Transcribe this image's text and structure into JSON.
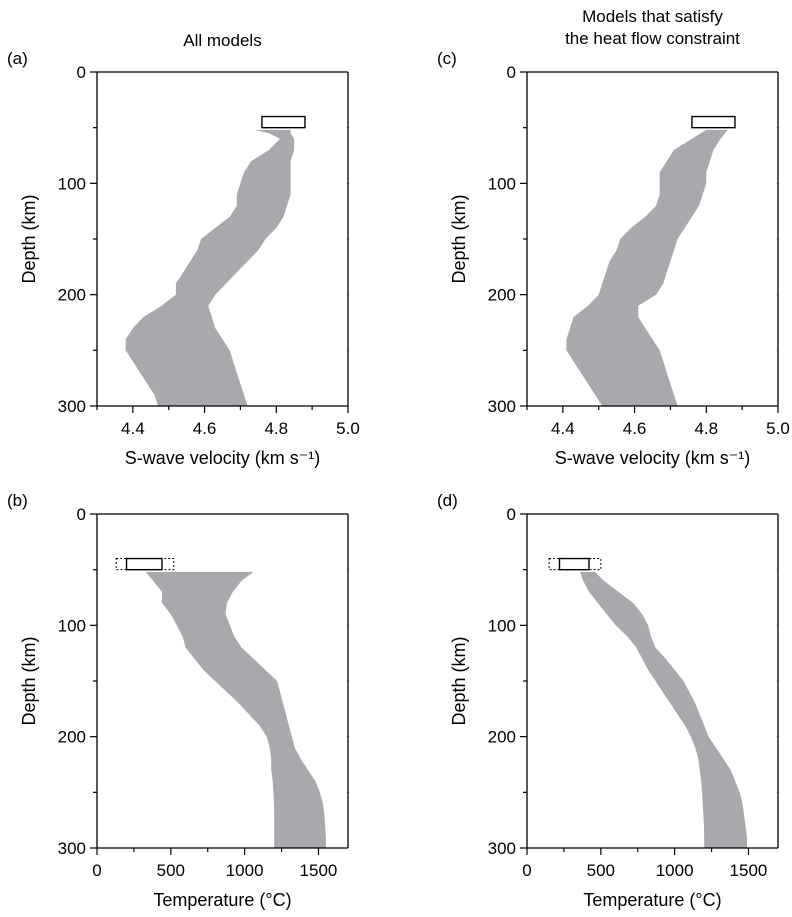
{
  "chart_data": [
    {
      "type": "area",
      "panel_label": "(a)",
      "title": "All models",
      "xlabel": "S-wave velocity (km s⁻¹)",
      "ylabel": "Depth (km)",
      "xlim": [
        4.3,
        5.0
      ],
      "ylim": [
        300,
        0
      ],
      "x_ticks": [
        4.4,
        4.6,
        4.8,
        5.0
      ],
      "x_tick_labels": [
        "4.4",
        "4.6",
        "4.8",
        "5.0"
      ],
      "y_ticks": [
        0,
        100,
        200,
        300
      ],
      "y_tick_labels": [
        "0",
        "100",
        "200",
        "300"
      ],
      "band": {
        "depth": [
          52,
          55,
          60,
          70,
          80,
          90,
          100,
          110,
          120,
          130,
          140,
          150,
          160,
          170,
          180,
          190,
          200,
          210,
          220,
          230,
          240,
          250,
          260,
          270,
          280,
          290,
          300
        ],
        "min": [
          4.74,
          4.78,
          4.81,
          4.78,
          4.73,
          4.71,
          4.7,
          4.69,
          4.69,
          4.67,
          4.63,
          4.59,
          4.58,
          4.56,
          4.54,
          4.52,
          4.52,
          4.48,
          4.43,
          4.4,
          4.38,
          4.38,
          4.4,
          4.42,
          4.44,
          4.46,
          4.47
        ],
        "max": [
          4.84,
          4.84,
          4.85,
          4.85,
          4.84,
          4.84,
          4.84,
          4.84,
          4.83,
          4.82,
          4.8,
          4.77,
          4.75,
          4.72,
          4.69,
          4.66,
          4.63,
          4.61,
          4.62,
          4.63,
          4.65,
          4.67,
          4.68,
          4.69,
          4.7,
          4.71,
          4.72
        ]
      },
      "reference_box": {
        "x": [
          4.76,
          4.88
        ],
        "depth": [
          40,
          50
        ],
        "style": "solid"
      },
      "band_color": "#a7a9ac"
    },
    {
      "type": "area",
      "panel_label": "(b)",
      "title": "",
      "xlabel": "Temperature (°C)",
      "ylabel": "Depth (km)",
      "xlim": [
        0,
        1700
      ],
      "ylim": [
        300,
        0
      ],
      "x_ticks": [
        0,
        500,
        1000,
        1500
      ],
      "x_tick_labels": [
        "0",
        "500",
        "1000",
        "1500"
      ],
      "y_ticks": [
        0,
        100,
        200,
        300
      ],
      "y_tick_labels": [
        "0",
        "100",
        "200",
        "300"
      ],
      "band": {
        "depth": [
          52,
          60,
          70,
          80,
          90,
          100,
          110,
          120,
          130,
          140,
          150,
          160,
          170,
          180,
          190,
          200,
          210,
          220,
          230,
          240,
          250,
          260,
          270,
          280,
          290,
          300
        ],
        "min": [
          330,
          380,
          440,
          440,
          500,
          540,
          580,
          600,
          660,
          720,
          800,
          880,
          960,
          1030,
          1100,
          1150,
          1170,
          1180,
          1180,
          1190,
          1195,
          1198,
          1200,
          1200,
          1200,
          1200
        ],
        "max": [
          1060,
          980,
          920,
          880,
          870,
          900,
          930,
          980,
          1060,
          1140,
          1220,
          1240,
          1260,
          1280,
          1300,
          1320,
          1340,
          1380,
          1430,
          1480,
          1510,
          1530,
          1540,
          1545,
          1550,
          1550
        ]
      },
      "reference_box": {
        "x": [
          200,
          440
        ],
        "depth": [
          40,
          50
        ],
        "style": "solid"
      },
      "reference_box_range": {
        "x": [
          130,
          520
        ],
        "depth": [
          40,
          50
        ],
        "style": "dotted"
      },
      "band_color": "#a7a9ac"
    },
    {
      "type": "area",
      "panel_label": "(c)",
      "title": "Models that satisfy the heat flow constraint",
      "title_lines": [
        "Models that satisfy",
        "the heat flow constraint"
      ],
      "xlabel": "S-wave velocity (km s⁻¹)",
      "ylabel": "Depth (km)",
      "xlim": [
        4.3,
        5.0
      ],
      "ylim": [
        300,
        0
      ],
      "x_ticks": [
        4.4,
        4.6,
        4.8,
        5.0
      ],
      "x_tick_labels": [
        "4.4",
        "4.6",
        "4.8",
        "5.0"
      ],
      "y_ticks": [
        0,
        100,
        200,
        300
      ],
      "y_tick_labels": [
        "0",
        "100",
        "200",
        "300"
      ],
      "band": {
        "depth": [
          52,
          60,
          70,
          80,
          90,
          100,
          110,
          120,
          130,
          140,
          150,
          160,
          170,
          180,
          190,
          200,
          210,
          220,
          230,
          240,
          250,
          260,
          270,
          280,
          290,
          300
        ],
        "min": [
          4.8,
          4.76,
          4.71,
          4.69,
          4.67,
          4.67,
          4.67,
          4.66,
          4.63,
          4.59,
          4.56,
          4.55,
          4.53,
          4.52,
          4.51,
          4.5,
          4.47,
          4.43,
          4.42,
          4.41,
          4.41,
          4.43,
          4.45,
          4.47,
          4.49,
          4.51
        ],
        "max": [
          4.86,
          4.84,
          4.82,
          4.81,
          4.8,
          4.8,
          4.79,
          4.78,
          4.76,
          4.74,
          4.72,
          4.71,
          4.7,
          4.69,
          4.68,
          4.66,
          4.61,
          4.61,
          4.63,
          4.65,
          4.67,
          4.68,
          4.69,
          4.7,
          4.71,
          4.72
        ]
      },
      "reference_box": {
        "x": [
          4.76,
          4.88
        ],
        "depth": [
          40,
          50
        ],
        "style": "solid"
      },
      "band_color": "#a7a9ac"
    },
    {
      "type": "area",
      "panel_label": "(d)",
      "title": "",
      "xlabel": "Temperature (°C)",
      "ylabel": "Depth (km)",
      "xlim": [
        0,
        1700
      ],
      "ylim": [
        300,
        0
      ],
      "x_ticks": [
        0,
        500,
        1000,
        1500
      ],
      "x_tick_labels": [
        "0",
        "500",
        "1000",
        "1500"
      ],
      "y_ticks": [
        0,
        100,
        200,
        300
      ],
      "y_tick_labels": [
        "0",
        "100",
        "200",
        "300"
      ],
      "band": {
        "depth": [
          52,
          60,
          70,
          80,
          90,
          100,
          110,
          120,
          130,
          140,
          150,
          160,
          170,
          180,
          190,
          200,
          210,
          220,
          230,
          240,
          250,
          260,
          270,
          280,
          290,
          300
        ],
        "min": [
          360,
          380,
          420,
          480,
          540,
          600,
          680,
          740,
          780,
          820,
          870,
          920,
          970,
          1020,
          1070,
          1110,
          1140,
          1160,
          1170,
          1180,
          1185,
          1190,
          1195,
          1198,
          1200,
          1200
        ],
        "max": [
          460,
          520,
          620,
          720,
          780,
          820,
          840,
          870,
          940,
          1000,
          1060,
          1100,
          1140,
          1170,
          1200,
          1230,
          1280,
          1330,
          1380,
          1410,
          1440,
          1460,
          1470,
          1480,
          1490,
          1490
        ]
      },
      "reference_box": {
        "x": [
          220,
          420
        ],
        "depth": [
          40,
          50
        ],
        "style": "solid"
      },
      "reference_box_range": {
        "x": [
          150,
          500
        ],
        "depth": [
          40,
          50
        ],
        "style": "dotted"
      },
      "band_color": "#a7a9ac"
    }
  ]
}
